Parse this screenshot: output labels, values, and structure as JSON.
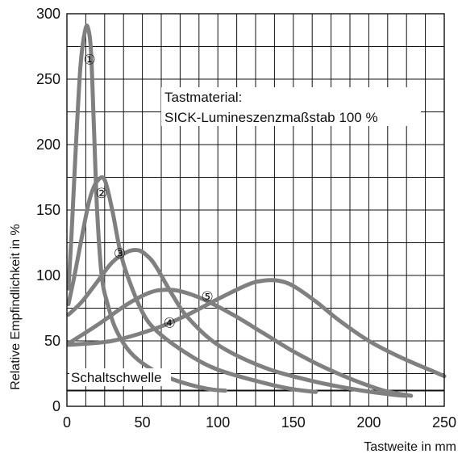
{
  "chart_data": {
    "type": "line",
    "xlabel": "Tastweite in mm",
    "ylabel": "Relative Empfindlichkeit in %",
    "xlim": [
      0,
      250
    ],
    "ylim": [
      0,
      300
    ],
    "xticks": [
      "0",
      "50",
      "100",
      "150",
      "200",
      "250"
    ],
    "yticks": [
      "0",
      "50",
      "100",
      "150",
      "200",
      "250",
      "300"
    ],
    "grid": true,
    "annotation": {
      "line1": "Tastmaterial:",
      "line2": "SICK-Lumineszenzmaßstab 100 %"
    },
    "threshold": {
      "label": "Schaltschwelle",
      "value": 12
    },
    "curve_color": "#808080",
    "series": [
      {
        "name": "①",
        "label_at": [
          15,
          265
        ],
        "x": [
          1,
          3,
          6,
          9,
          12,
          14,
          16,
          18,
          20,
          23,
          27,
          32,
          40,
          50,
          65,
          80,
          95,
          105
        ],
        "y": [
          90,
          130,
          200,
          260,
          287,
          289,
          270,
          210,
          150,
          100,
          78,
          60,
          44,
          33,
          23,
          17,
          13,
          12
        ]
      },
      {
        "name": "②",
        "label_at": [
          23,
          163
        ],
        "x": [
          1,
          5,
          10,
          15,
          20,
          25,
          30,
          35,
          40,
          50,
          60,
          80,
          100,
          130,
          150,
          165
        ],
        "y": [
          78,
          100,
          130,
          158,
          172,
          173,
          150,
          120,
          100,
          72,
          57,
          40,
          28,
          18,
          13,
          11
        ]
      },
      {
        "name": "③",
        "label_at": [
          35,
          117
        ],
        "x": [
          1,
          10,
          20,
          30,
          40,
          48,
          55,
          60,
          70,
          80,
          100,
          130,
          160,
          190,
          215,
          225
        ],
        "y": [
          70,
          80,
          95,
          110,
          118,
          119,
          113,
          105,
          85,
          68,
          47,
          30,
          20,
          13,
          9,
          8
        ]
      },
      {
        "name": "④",
        "label_at": [
          68,
          64
        ],
        "x": [
          1,
          20,
          40,
          55,
          65,
          75,
          90,
          110,
          130,
          150,
          170,
          190,
          210,
          228
        ],
        "y": [
          48,
          62,
          78,
          87,
          89,
          88,
          82,
          70,
          56,
          42,
          30,
          20,
          12,
          8
        ]
      },
      {
        "name": "⑤",
        "label_at": [
          93,
          84
        ],
        "x": [
          1,
          30,
          60,
          80,
          100,
          120,
          130,
          140,
          150,
          165,
          180,
          200,
          220,
          240,
          250
        ],
        "y": [
          47,
          50,
          60,
          70,
          82,
          93,
          96,
          96,
          92,
          80,
          66,
          50,
          38,
          28,
          23
        ]
      }
    ]
  }
}
